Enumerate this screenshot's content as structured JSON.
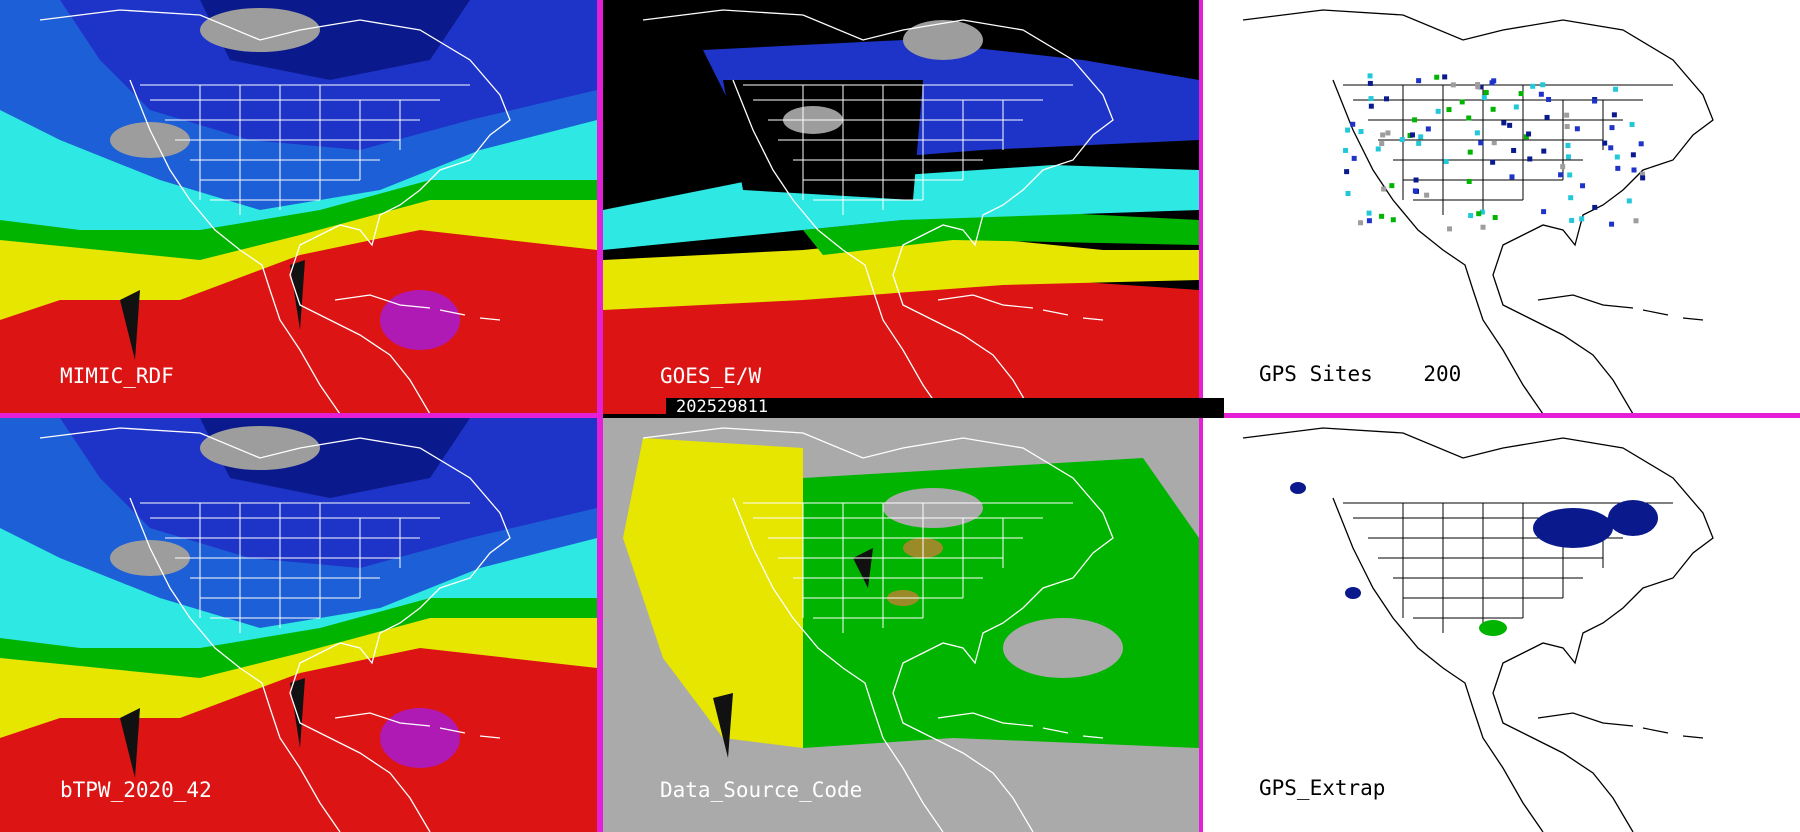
{
  "panels": [
    {
      "id": "mimic",
      "label": "MIMIC_RDF",
      "style": "tpw"
    },
    {
      "id": "goes",
      "label": "GOES_E/W",
      "style": "goes"
    },
    {
      "id": "gps-sites",
      "label": "GPS Sites    200",
      "style": "gps"
    },
    {
      "id": "btpw",
      "label": "bTPW_2020_42",
      "style": "tpw"
    },
    {
      "id": "dsc",
      "label": "Data_Source_Code",
      "style": "dsc"
    },
    {
      "id": "gps-extrap",
      "label": "GPS_Extrap",
      "style": "gpsx"
    }
  ],
  "timestamp": "202529811",
  "colors": {
    "separator": "#e41fd6",
    "tpw_scale": [
      "#9d9d9d",
      "#0a1a8c",
      "#1e33c8",
      "#1d5fd6",
      "#22c8d8",
      "#2ee8e3",
      "#44c46c",
      "#00b400",
      "#e6e600",
      "#dc1414",
      "#b01ab4"
    ],
    "dsc_gray": "#aaaaaa",
    "dsc_yellow": "#e6e600",
    "dsc_green": "#00b400",
    "dsc_olive": "#9b8a28"
  }
}
